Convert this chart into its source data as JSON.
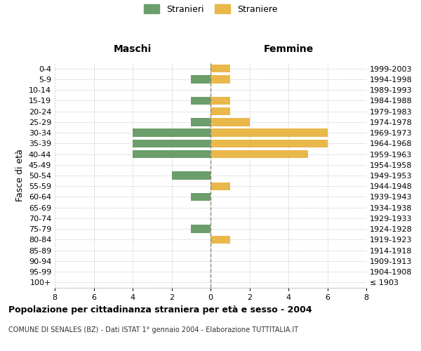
{
  "age_groups": [
    "100+",
    "95-99",
    "90-94",
    "85-89",
    "80-84",
    "75-79",
    "70-74",
    "65-69",
    "60-64",
    "55-59",
    "50-54",
    "45-49",
    "40-44",
    "35-39",
    "30-34",
    "25-29",
    "20-24",
    "15-19",
    "10-14",
    "5-9",
    "0-4"
  ],
  "birth_years": [
    "≤ 1903",
    "1904-1908",
    "1909-1913",
    "1914-1918",
    "1919-1923",
    "1924-1928",
    "1929-1933",
    "1934-1938",
    "1939-1943",
    "1944-1948",
    "1949-1953",
    "1954-1958",
    "1959-1963",
    "1964-1968",
    "1969-1973",
    "1974-1978",
    "1979-1983",
    "1984-1988",
    "1989-1993",
    "1994-1998",
    "1999-2003"
  ],
  "males": [
    0,
    0,
    0,
    0,
    0,
    1,
    0,
    0,
    1,
    0,
    2,
    0,
    4,
    4,
    4,
    1,
    0,
    1,
    0,
    1,
    0
  ],
  "females": [
    0,
    0,
    0,
    0,
    1,
    0,
    0,
    0,
    0,
    1,
    0,
    0,
    5,
    6,
    6,
    2,
    1,
    1,
    0,
    1,
    1
  ],
  "male_color": "#6b9e6b",
  "female_color": "#e8b84b",
  "title": "Popolazione per cittadinanza straniera per età e sesso - 2004",
  "subtitle": "COMUNE DI SENALES (BZ) - Dati ISTAT 1° gennaio 2004 - Elaborazione TUTTITALIA.IT",
  "xlabel_left": "Maschi",
  "xlabel_right": "Femmine",
  "ylabel_left": "Fasce di età",
  "legend_male": "Stranieri",
  "legend_female": "Straniere",
  "xlim": 8,
  "bg_color": "#ffffff",
  "grid_color": "#cccccc",
  "bar_height": 0.75
}
